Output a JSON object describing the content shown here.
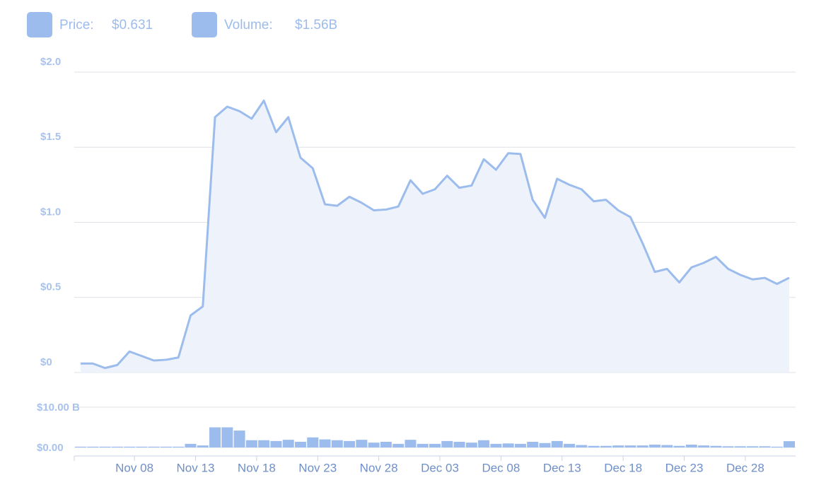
{
  "chart_data": {
    "type": "line",
    "categories": [
      null,
      null,
      null,
      null,
      "Nov 08",
      null,
      null,
      null,
      null,
      "Nov 13",
      null,
      null,
      null,
      null,
      "Nov 18",
      null,
      null,
      null,
      null,
      "Nov 23",
      null,
      null,
      null,
      null,
      "Nov 28",
      null,
      null,
      null,
      null,
      "Dec 03",
      null,
      null,
      null,
      null,
      "Dec 08",
      null,
      null,
      null,
      null,
      "Dec 13",
      null,
      null,
      null,
      null,
      "Dec 18",
      null,
      null,
      null,
      null,
      "Dec 23",
      null,
      null,
      null,
      null,
      "Dec 28",
      null,
      null,
      null,
      null
    ],
    "series": [
      {
        "name": "Price:",
        "legend_value": "$0.631",
        "color": "#9bbcec",
        "values": [
          0.06,
          0.06,
          0.03,
          0.05,
          0.14,
          0.11,
          0.08,
          0.085,
          0.1,
          0.38,
          0.44,
          1.7,
          1.77,
          1.74,
          1.69,
          1.81,
          1.6,
          1.7,
          1.43,
          1.36,
          1.12,
          1.11,
          1.17,
          1.13,
          1.08,
          1.085,
          1.105,
          1.28,
          1.19,
          1.22,
          1.31,
          1.23,
          1.245,
          1.42,
          1.35,
          1.46,
          1.455,
          1.15,
          1.03,
          1.29,
          1.25,
          1.22,
          1.14,
          1.15,
          1.08,
          1.035,
          0.86,
          0.67,
          0.69,
          0.6,
          0.7,
          0.73,
          0.77,
          0.69,
          0.65,
          0.62,
          0.63,
          0.59,
          0.631
        ]
      },
      {
        "name": "Volume:",
        "legend_value": "$1.56B",
        "color": "#9bbcec",
        "axis": "y2",
        "values": [
          0.2,
          0.2,
          0.2,
          0.2,
          0.2,
          0.2,
          0.2,
          0.2,
          0.2,
          0.9,
          0.5,
          5.0,
          5.0,
          4.2,
          1.8,
          1.8,
          1.6,
          1.9,
          1.4,
          2.5,
          2.0,
          1.8,
          1.6,
          1.9,
          1.2,
          1.4,
          0.9,
          1.9,
          0.9,
          0.9,
          1.6,
          1.4,
          1.2,
          1.8,
          0.9,
          1.0,
          0.9,
          1.4,
          1.1,
          1.6,
          0.9,
          0.6,
          0.4,
          0.4,
          0.5,
          0.5,
          0.5,
          0.7,
          0.6,
          0.4,
          0.7,
          0.5,
          0.4,
          0.3,
          0.3,
          0.3,
          0.3,
          0.2,
          1.56
        ]
      }
    ],
    "ylim": [
      0,
      2
    ],
    "yticks": [
      {
        "value": 0,
        "label": "$0"
      },
      {
        "value": 0.5,
        "label": "$0.5"
      },
      {
        "value": 1,
        "label": "$1.0"
      },
      {
        "value": 1.5,
        "label": "$1.5"
      },
      {
        "value": 2,
        "label": "$2.0"
      }
    ],
    "y2lim": [
      0,
      10
    ],
    "y2ticks": [
      {
        "value": 0,
        "label": "$0.00"
      },
      {
        "value": 10,
        "label": "$10.00 B"
      }
    ],
    "grid": true
  }
}
